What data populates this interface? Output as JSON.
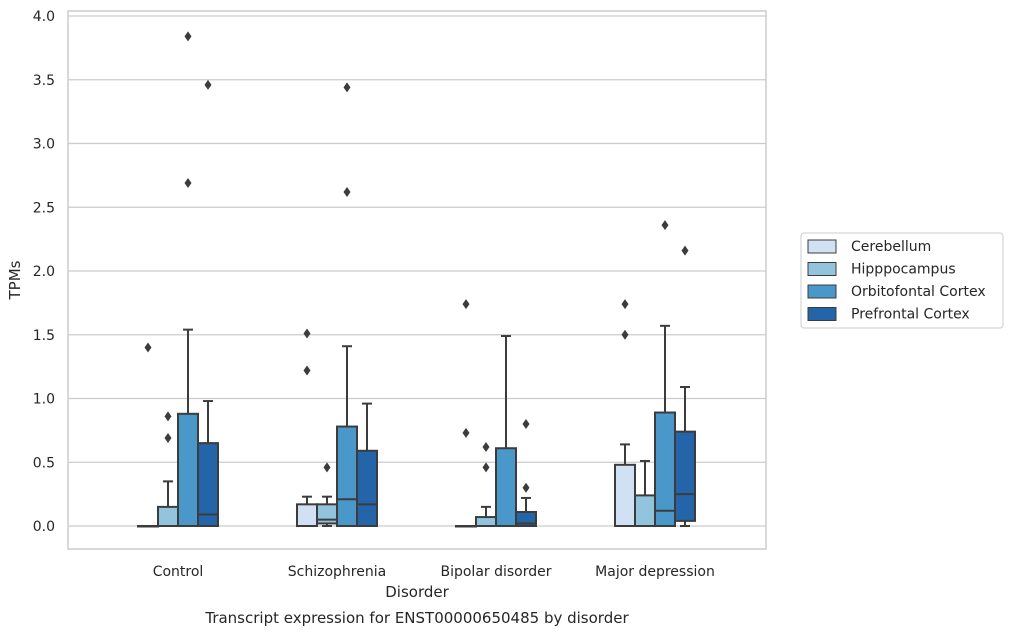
{
  "chart_data": {
    "type": "box",
    "title": "",
    "caption": "Transcript expression for ENST00000650485 by disorder",
    "xlabel": "Disorder",
    "ylabel": "TPMs",
    "ylim": [
      -0.18,
      4.05
    ],
    "yticks": [
      0.0,
      0.5,
      1.0,
      1.5,
      2.0,
      2.5,
      3.0,
      3.5,
      4.0
    ],
    "ytick_labels": [
      "0.0",
      "0.5",
      "1.0",
      "1.5",
      "2.0",
      "2.5",
      "3.0",
      "3.5",
      "4.0"
    ],
    "grid": "horizontal",
    "legend_position": "right-center",
    "categories": [
      "Control",
      "Schizophrenia",
      "Bipolar disorder",
      "Major depression"
    ],
    "series": [
      {
        "name": "Cerebellum",
        "color": "#cfe1f2",
        "boxes": [
          {
            "q1": 0.0,
            "median": 0.0,
            "q3": 0.0,
            "whisker_low": 0.0,
            "whisker_high": 0.0,
            "outliers": [
              1.4
            ]
          },
          {
            "q1": 0.0,
            "median": 0.0,
            "q3": 0.17,
            "whisker_low": 0.0,
            "whisker_high": 0.23,
            "outliers": [
              1.51,
              1.22
            ]
          },
          {
            "q1": 0.0,
            "median": 0.0,
            "q3": 0.0,
            "whisker_low": 0.0,
            "whisker_high": 0.0,
            "outliers": [
              1.74,
              0.73
            ]
          },
          {
            "q1": 0.0,
            "median": 0.0,
            "q3": 0.48,
            "whisker_low": 0.0,
            "whisker_high": 0.64,
            "outliers": [
              1.74,
              1.5
            ]
          }
        ]
      },
      {
        "name": "Hipppocampus",
        "color": "#93c4de",
        "boxes": [
          {
            "q1": 0.0,
            "median": 0.0,
            "q3": 0.15,
            "whisker_low": 0.0,
            "whisker_high": 0.35,
            "outliers": [
              0.86,
              0.69
            ]
          },
          {
            "q1": 0.02,
            "median": 0.05,
            "q3": 0.17,
            "whisker_low": 0.0,
            "whisker_high": 0.23,
            "outliers": [
              0.46
            ]
          },
          {
            "q1": 0.0,
            "median": 0.0,
            "q3": 0.07,
            "whisker_low": 0.0,
            "whisker_high": 0.15,
            "outliers": [
              0.62,
              0.46
            ]
          },
          {
            "q1": 0.0,
            "median": 0.0,
            "q3": 0.24,
            "whisker_low": 0.0,
            "whisker_high": 0.51,
            "outliers": []
          }
        ]
      },
      {
        "name": "Orbitofontal Cortex",
        "color": "#4a98c9",
        "boxes": [
          {
            "q1": 0.0,
            "median": 0.0,
            "q3": 0.88,
            "whisker_low": 0.0,
            "whisker_high": 1.54,
            "outliers": [
              3.84,
              2.69
            ]
          },
          {
            "q1": 0.0,
            "median": 0.21,
            "q3": 0.78,
            "whisker_low": 0.0,
            "whisker_high": 1.41,
            "outliers": [
              3.44,
              2.62
            ]
          },
          {
            "q1": 0.0,
            "median": 0.0,
            "q3": 0.61,
            "whisker_low": 0.0,
            "whisker_high": 1.49,
            "outliers": []
          },
          {
            "q1": 0.0,
            "median": 0.12,
            "q3": 0.89,
            "whisker_low": 0.0,
            "whisker_high": 1.57,
            "outliers": [
              2.36
            ]
          }
        ]
      },
      {
        "name": "Prefrontal Cortex",
        "color": "#2365a8",
        "boxes": [
          {
            "q1": 0.0,
            "median": 0.09,
            "q3": 0.65,
            "whisker_low": 0.0,
            "whisker_high": 0.98,
            "outliers": [
              3.46
            ]
          },
          {
            "q1": 0.0,
            "median": 0.17,
            "q3": 0.59,
            "whisker_low": 0.0,
            "whisker_high": 0.96,
            "outliers": []
          },
          {
            "q1": 0.0,
            "median": 0.02,
            "q3": 0.11,
            "whisker_low": 0.0,
            "whisker_high": 0.22,
            "outliers": [
              0.8,
              0.3
            ]
          },
          {
            "q1": 0.04,
            "median": 0.25,
            "q3": 0.74,
            "whisker_low": 0.0,
            "whisker_high": 1.09,
            "outliers": [
              2.16
            ]
          }
        ]
      }
    ]
  }
}
